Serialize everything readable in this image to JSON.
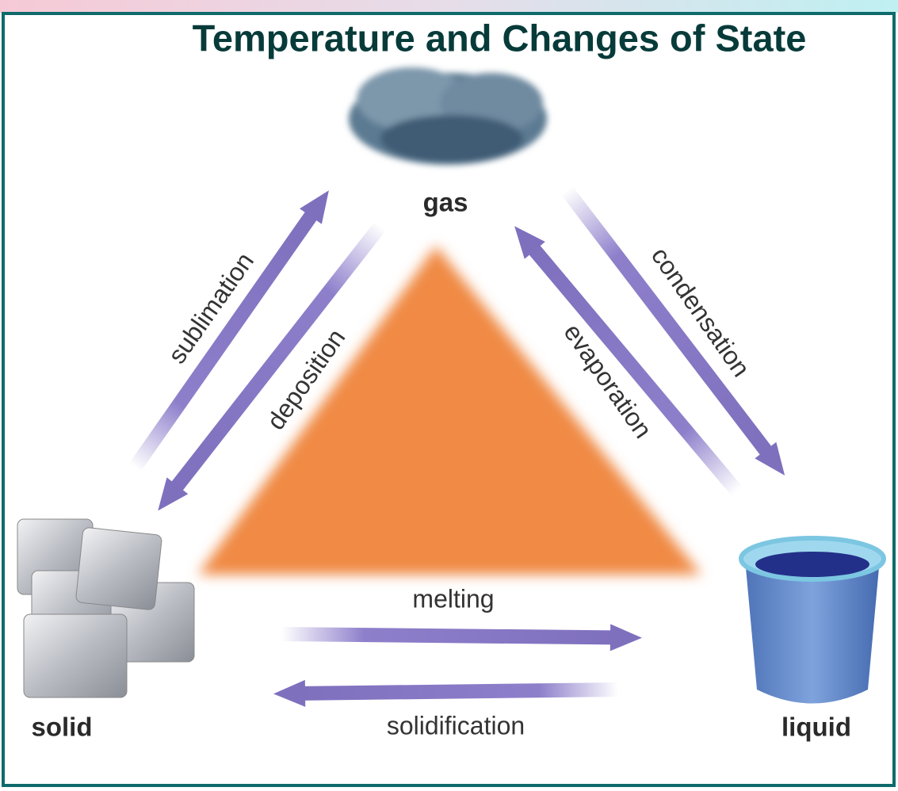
{
  "title": "Temperature and Changes of State",
  "states": [
    {
      "label": "gas"
    },
    {
      "label": "solid"
    },
    {
      "label": "liquid"
    }
  ],
  "transitions": [
    {
      "label": "sublimation"
    },
    {
      "label": "deposition"
    },
    {
      "label": "evaporation"
    },
    {
      "label": "condensation"
    },
    {
      "label": "melting"
    },
    {
      "label": "solidification"
    }
  ]
}
